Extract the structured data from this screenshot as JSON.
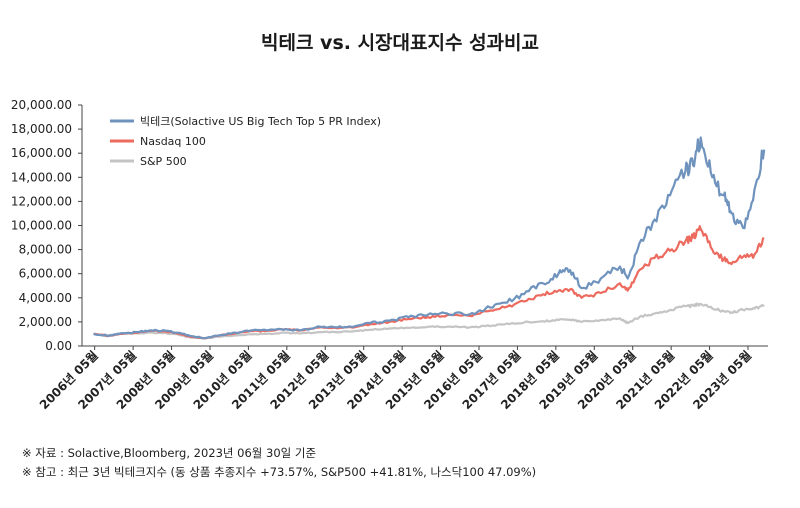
{
  "chart_data": {
    "type": "line",
    "title": "빅테크 vs. 시장대표지수 성과비교",
    "ylim": [
      0,
      20000
    ],
    "y_ticks": [
      "0.00",
      "2,000.00",
      "4,000.00",
      "6,000.00",
      "8,000.00",
      "10,000.00",
      "12,000.00",
      "14,000.00",
      "16,000.00",
      "18,000.00",
      "20,000.00"
    ],
    "y_tick_values": [
      0,
      2000,
      4000,
      6000,
      8000,
      10000,
      12000,
      14000,
      16000,
      18000,
      20000
    ],
    "x_ticks": [
      "2006년 05월",
      "2007년 05월",
      "2008년 05월",
      "2009년 05월",
      "2010년 05월",
      "2011년 05월",
      "2012년 05월",
      "2013년 05월",
      "2014년 05월",
      "2015년 05월",
      "2016년 05월",
      "2017년 05월",
      "2018년 05월",
      "2019년 05월",
      "2020년 05월",
      "2021년 05월",
      "2022년 05월",
      "2023년 05월"
    ],
    "x": [
      2006.3,
      2006.7,
      2007.0,
      2007.4,
      2007.8,
      2008.2,
      2008.5,
      2008.8,
      2009.2,
      2009.5,
      2010.0,
      2010.4,
      2010.8,
      2011.3,
      2011.7,
      2012.2,
      2012.6,
      2013.0,
      2013.5,
      2014.0,
      2014.5,
      2015.0,
      2015.5,
      2016.1,
      2016.5,
      2017.0,
      2017.5,
      2018.0,
      2018.4,
      2018.7,
      2019.0,
      2019.5,
      2020.0,
      2020.2,
      2020.5,
      2020.9,
      2021.3,
      2021.7,
      2021.9,
      2022.1,
      2022.4,
      2022.7,
      2022.9,
      2023.2,
      2023.5,
      2023.75
    ],
    "series": [
      {
        "name": "빅테크(Solactive US Big Tech Top 5 PR Index)",
        "color": "#6f93bd",
        "values": [
          1000,
          850,
          1050,
          1150,
          1300,
          1250,
          1100,
          850,
          650,
          850,
          1100,
          1300,
          1300,
          1400,
          1300,
          1600,
          1550,
          1600,
          1900,
          2100,
          2400,
          2600,
          2700,
          2650,
          3100,
          3600,
          4300,
          5200,
          6000,
          6300,
          4800,
          5600,
          6600,
          5600,
          8500,
          10500,
          12500,
          14500,
          15000,
          17300,
          14000,
          12500,
          11000,
          9800,
          13000,
          16300
        ]
      },
      {
        "name": "Nasdaq 100",
        "color": "#ed6a5f",
        "values": [
          1000,
          830,
          1000,
          1100,
          1250,
          1200,
          1050,
          780,
          650,
          850,
          1050,
          1250,
          1250,
          1400,
          1300,
          1550,
          1500,
          1550,
          1800,
          2000,
          2250,
          2400,
          2550,
          2500,
          2900,
          3200,
          3700,
          4300,
          4600,
          4700,
          4000,
          4400,
          5200,
          4600,
          6300,
          7300,
          7900,
          8700,
          9000,
          9700,
          8000,
          7200,
          6800,
          7400,
          7600,
          8900
        ]
      },
      {
        "name": "S&P 500",
        "color": "#c4c4c4",
        "values": [
          1000,
          900,
          1000,
          1050,
          1100,
          1050,
          950,
          720,
          620,
          760,
          880,
          980,
          1000,
          1100,
          1050,
          1150,
          1150,
          1200,
          1350,
          1450,
          1500,
          1600,
          1600,
          1550,
          1650,
          1800,
          1950,
          2050,
          2150,
          2200,
          2000,
          2150,
          2300,
          1900,
          2400,
          2700,
          3000,
          3300,
          3350,
          3500,
          3100,
          2900,
          2800,
          3000,
          3100,
          3400
        ]
      }
    ]
  },
  "notes": [
    "※ 자료 : Solactive,Bloomberg, 2023년 06월 30일 기준",
    "※ 참고 : 최근 3년 빅테크지수 (동 상품 추종지수 +73.57%, S&P500 +41.81%, 나스닥100 47.09%)"
  ]
}
